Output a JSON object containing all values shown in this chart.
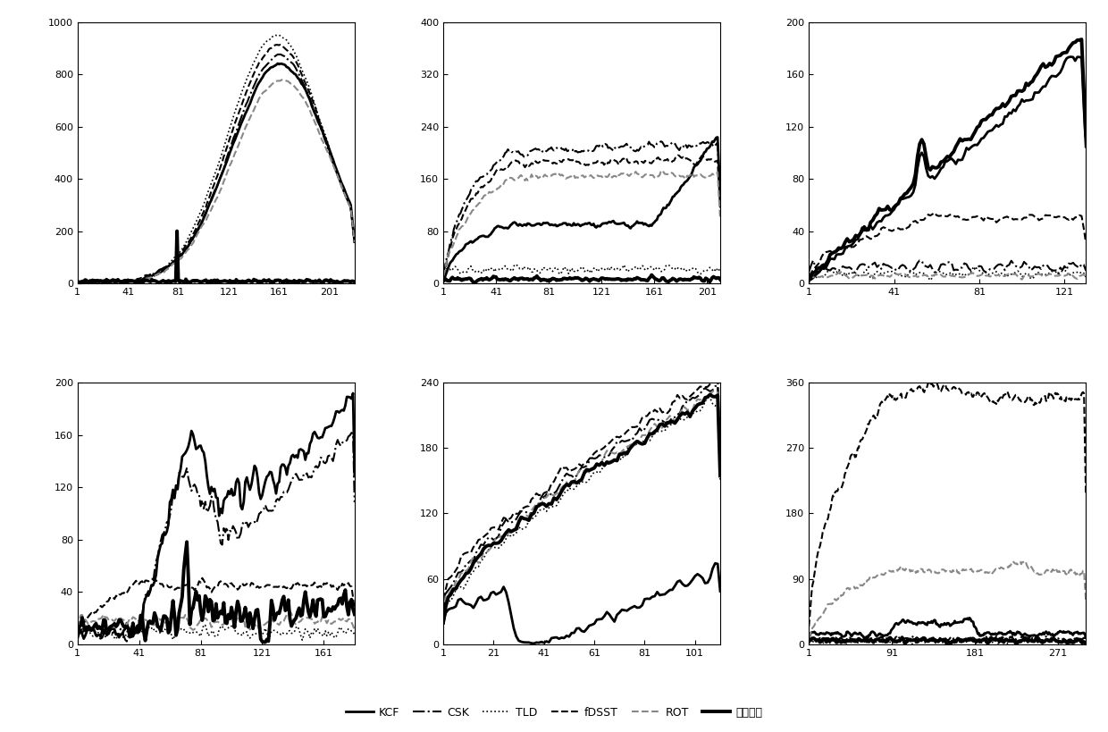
{
  "subplots": [
    {
      "ylim": [
        0,
        1000
      ],
      "yticks": [
        0,
        200,
        400,
        600,
        800,
        1000
      ],
      "xlim": [
        1,
        221
      ],
      "xticks": [
        1,
        41,
        81,
        121,
        161,
        201
      ]
    },
    {
      "ylim": [
        0,
        400
      ],
      "yticks": [
        0,
        80,
        160,
        240,
        320,
        400
      ],
      "xlim": [
        1,
        211
      ],
      "xticks": [
        1,
        41,
        81,
        121,
        161,
        201
      ]
    },
    {
      "ylim": [
        0,
        200
      ],
      "yticks": [
        0,
        40,
        80,
        120,
        160,
        200
      ],
      "xlim": [
        1,
        131
      ],
      "xticks": [
        1,
        41,
        81,
        121
      ]
    },
    {
      "ylim": [
        0,
        200
      ],
      "yticks": [
        0,
        40,
        80,
        120,
        160,
        200
      ],
      "xlim": [
        1,
        181
      ],
      "xticks": [
        1,
        41,
        81,
        121,
        161
      ]
    },
    {
      "ylim": [
        0,
        240
      ],
      "yticks": [
        0,
        60,
        120,
        180,
        240
      ],
      "xlim": [
        1,
        111
      ],
      "xticks": [
        1,
        21,
        41,
        61,
        81,
        101
      ]
    },
    {
      "ylim": [
        0,
        360
      ],
      "yticks": [
        0,
        90,
        180,
        270,
        360
      ],
      "xlim": [
        1,
        301
      ],
      "xticks": [
        1,
        91,
        181,
        271
      ]
    }
  ],
  "legend_labels": [
    "KCF",
    "CSK",
    "TLD",
    "fDSST",
    "ROT",
    "本文方法"
  ],
  "fig_size": [
    12.4,
    8.19
  ]
}
